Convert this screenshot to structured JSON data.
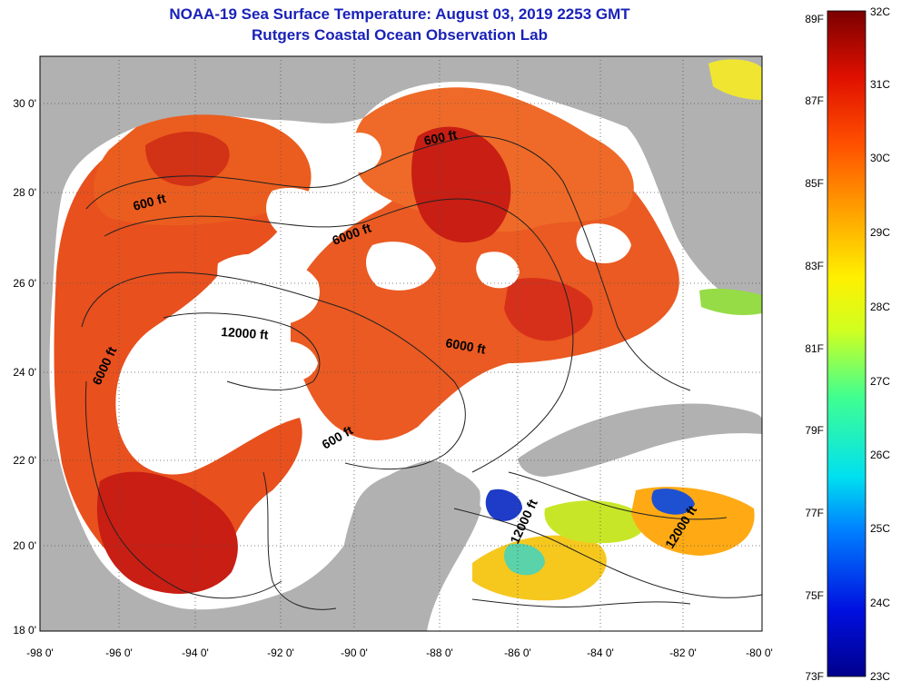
{
  "title": {
    "line1": "NOAA-19 Sea Surface Temperature:  August 03, 2019 2253 GMT",
    "line2": "Rutgers Coastal Ocean Observation Lab"
  },
  "axes": {
    "longitude_labels": [
      "-98 0'",
      "-96 0'",
      "-94 0'",
      "-92 0'",
      "-90 0'",
      "-88 0'",
      "-86 0'",
      "-84 0'",
      "-82 0'",
      "-80 0'"
    ],
    "latitude_labels": [
      "30 0'",
      "28 0'",
      "26 0'",
      "24 0'",
      "22 0'",
      "20 0'",
      "18 0'"
    ]
  },
  "contour_labels": [
    "600 ft",
    "600 ft",
    "6000 ft",
    "12000 ft",
    "6000 ft",
    "6000 ft",
    "600 ft",
    "12000 ft",
    "12000 ft"
  ],
  "colorbar": {
    "fahrenheit_labels": [
      "89F",
      "87F",
      "85F",
      "83F",
      "81F",
      "79F",
      "77F",
      "75F",
      "73F"
    ],
    "celsius_labels": [
      "32C",
      "31C",
      "30C",
      "29C",
      "28C",
      "27C",
      "26C",
      "25C",
      "24C",
      "23C"
    ]
  },
  "colors": {
    "title": "#1a22b8",
    "land": "#b1b1b1",
    "warm_water": "#e8501e",
    "hot_water": "#c81e14",
    "cloud": "#ffffff"
  }
}
